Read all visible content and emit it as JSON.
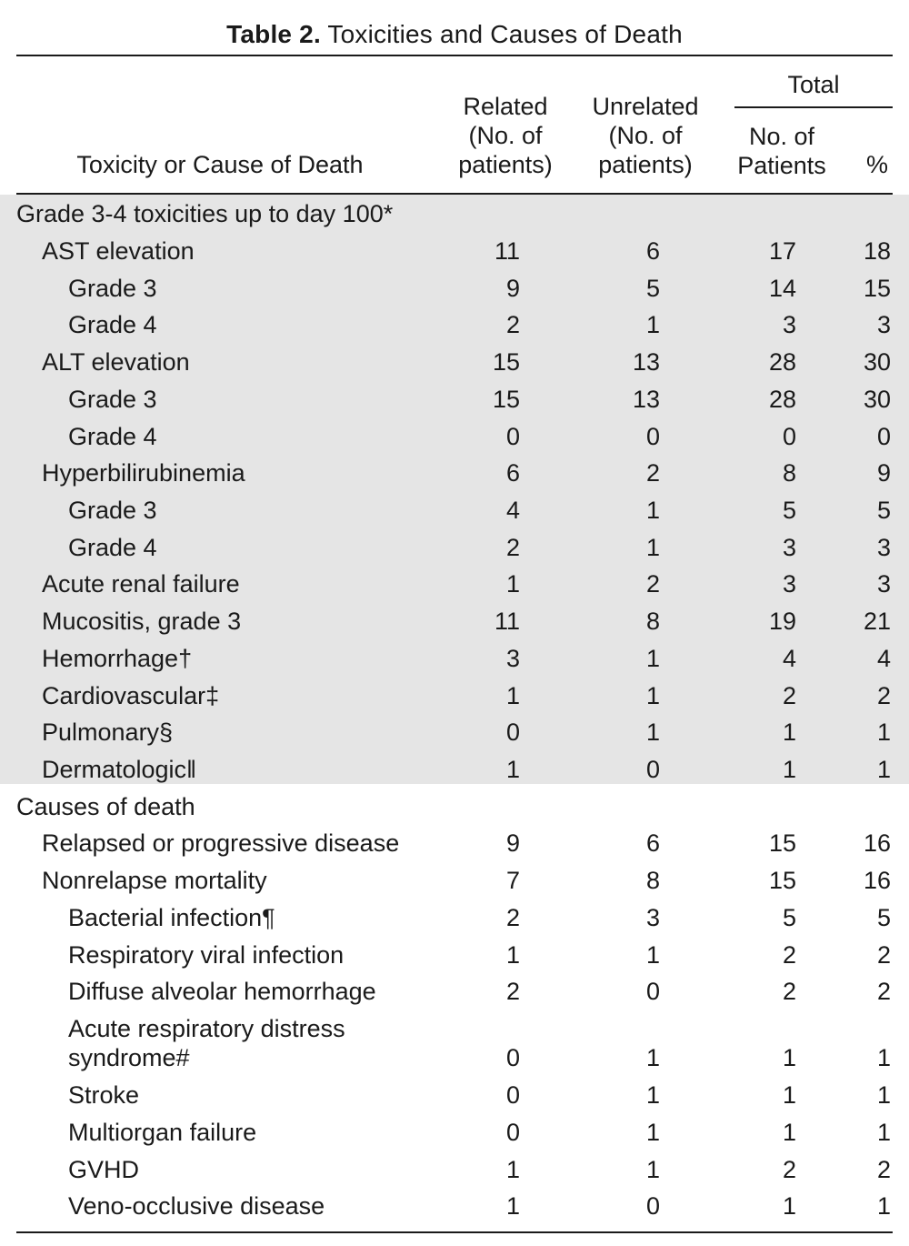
{
  "title": {
    "label": "Table  2.",
    "text": " Toxicities and Causes of Death"
  },
  "header": {
    "toxicity": "Toxicity or Cause of Death",
    "related": [
      "Related",
      "(No. of",
      "patients)"
    ],
    "unrelated": [
      "Unrelated",
      "(No. of",
      "patients)"
    ],
    "total": "Total",
    "no_patients": [
      "No. of",
      "Patients"
    ],
    "pct": "%"
  },
  "rows": [
    {
      "label": "Grade 3-4 toxicities up to day 100*",
      "indent": 0,
      "values": [
        "",
        "",
        "",
        ""
      ]
    },
    {
      "label": "AST elevation",
      "indent": 1,
      "values": [
        "11",
        "6",
        "17",
        "18"
      ]
    },
    {
      "label": "Grade 3",
      "indent": 2,
      "values": [
        "9",
        "5",
        "14",
        "15"
      ]
    },
    {
      "label": "Grade 4",
      "indent": 2,
      "values": [
        "2",
        "1",
        "3",
        "3"
      ]
    },
    {
      "label": "ALT elevation",
      "indent": 1,
      "values": [
        "15",
        "13",
        "28",
        "30"
      ]
    },
    {
      "label": "Grade 3",
      "indent": 2,
      "values": [
        "15",
        "13",
        "28",
        "30"
      ]
    },
    {
      "label": "Grade 4",
      "indent": 2,
      "values": [
        "0",
        "0",
        "0",
        "0"
      ]
    },
    {
      "label": "Hyperbilirubinemia",
      "indent": 1,
      "values": [
        "6",
        "2",
        "8",
        "9"
      ]
    },
    {
      "label": "Grade 3",
      "indent": 2,
      "values": [
        "4",
        "1",
        "5",
        "5"
      ]
    },
    {
      "label": "Grade 4",
      "indent": 2,
      "values": [
        "2",
        "1",
        "3",
        "3"
      ]
    },
    {
      "label": "Acute renal failure",
      "indent": 1,
      "values": [
        "1",
        "2",
        "3",
        "3"
      ]
    },
    {
      "label": "Mucositis, grade 3",
      "indent": 1,
      "values": [
        "11",
        "8",
        "19",
        "21"
      ]
    },
    {
      "label": "Hemorrhage†",
      "indent": 1,
      "values": [
        "3",
        "1",
        "4",
        "4"
      ]
    },
    {
      "label": "Cardiovascular‡",
      "indent": 1,
      "values": [
        "1",
        "1",
        "2",
        "2"
      ]
    },
    {
      "label": "Pulmonary§",
      "indent": 1,
      "values": [
        "0",
        "1",
        "1",
        "1"
      ]
    },
    {
      "label": "Dermatologic‖",
      "indent": 1,
      "values": [
        "1",
        "0",
        "1",
        "1"
      ]
    },
    {
      "label": "Causes of death",
      "indent": 0,
      "values": [
        "",
        "",
        "",
        ""
      ]
    },
    {
      "label": "Relapsed or progressive disease",
      "indent": 1,
      "values": [
        "9",
        "6",
        "15",
        "16"
      ]
    },
    {
      "label": "Nonrelapse mortality",
      "indent": 1,
      "values": [
        "7",
        "8",
        "15",
        "16"
      ]
    },
    {
      "label": "Bacterial infection¶",
      "indent": 2,
      "values": [
        "2",
        "3",
        "5",
        "5"
      ]
    },
    {
      "label": "Respiratory viral infection",
      "indent": 2,
      "values": [
        "1",
        "1",
        "2",
        "2"
      ]
    },
    {
      "label": "Diffuse alveolar hemorrhage",
      "indent": 2,
      "values": [
        "2",
        "0",
        "2",
        "2"
      ]
    },
    {
      "label": "Acute respiratory distress",
      "indent": 2,
      "values": [
        "",
        "",
        "",
        ""
      ]
    },
    {
      "label": "syndrome#",
      "indent": 2,
      "values": [
        "0",
        "1",
        "1",
        "1"
      ]
    },
    {
      "label": "Stroke",
      "indent": 2,
      "values": [
        "0",
        "1",
        "1",
        "1"
      ]
    },
    {
      "label": "Multiorgan failure",
      "indent": 2,
      "values": [
        "0",
        "1",
        "1",
        "1"
      ]
    },
    {
      "label": "GVHD",
      "indent": 2,
      "values": [
        "1",
        "1",
        "2",
        "2"
      ]
    },
    {
      "label": "Veno-occlusive disease",
      "indent": 2,
      "values": [
        "1",
        "0",
        "1",
        "1"
      ]
    }
  ]
}
